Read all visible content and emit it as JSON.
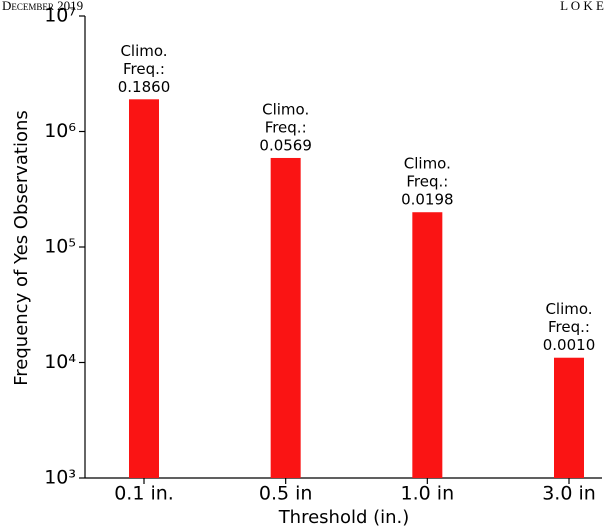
{
  "header": {
    "left": "December 2019",
    "right": "L O K E"
  },
  "chart_data": {
    "type": "bar",
    "xlabel": "Threshold (in.)",
    "ylabel": "Frequency of Yes Observations",
    "categories": [
      "0.1 in.",
      "0.5 in",
      "1.0 in",
      "3.0 in"
    ],
    "values": [
      1900000,
      590000,
      200000,
      11000
    ],
    "color": "#fa1414",
    "log_scale": true,
    "ylim": [
      1000,
      10000000
    ],
    "yticks": [
      {
        "value": 1000,
        "label": "10³"
      },
      {
        "value": 10000,
        "label": "10⁴"
      },
      {
        "value": 100000,
        "label": "10⁵"
      },
      {
        "value": 1000000,
        "label": "10⁶"
      },
      {
        "value": 10000000,
        "label": "10⁷"
      }
    ],
    "annotations": [
      [
        "Climo.",
        "Freq.:",
        "0.1860"
      ],
      [
        "Climo.",
        "Freq.:",
        "0.0569"
      ],
      [
        "Climo.",
        "Freq.:",
        "0.0198"
      ],
      [
        "Climo.",
        "Freq.:",
        "0.0010"
      ]
    ]
  }
}
